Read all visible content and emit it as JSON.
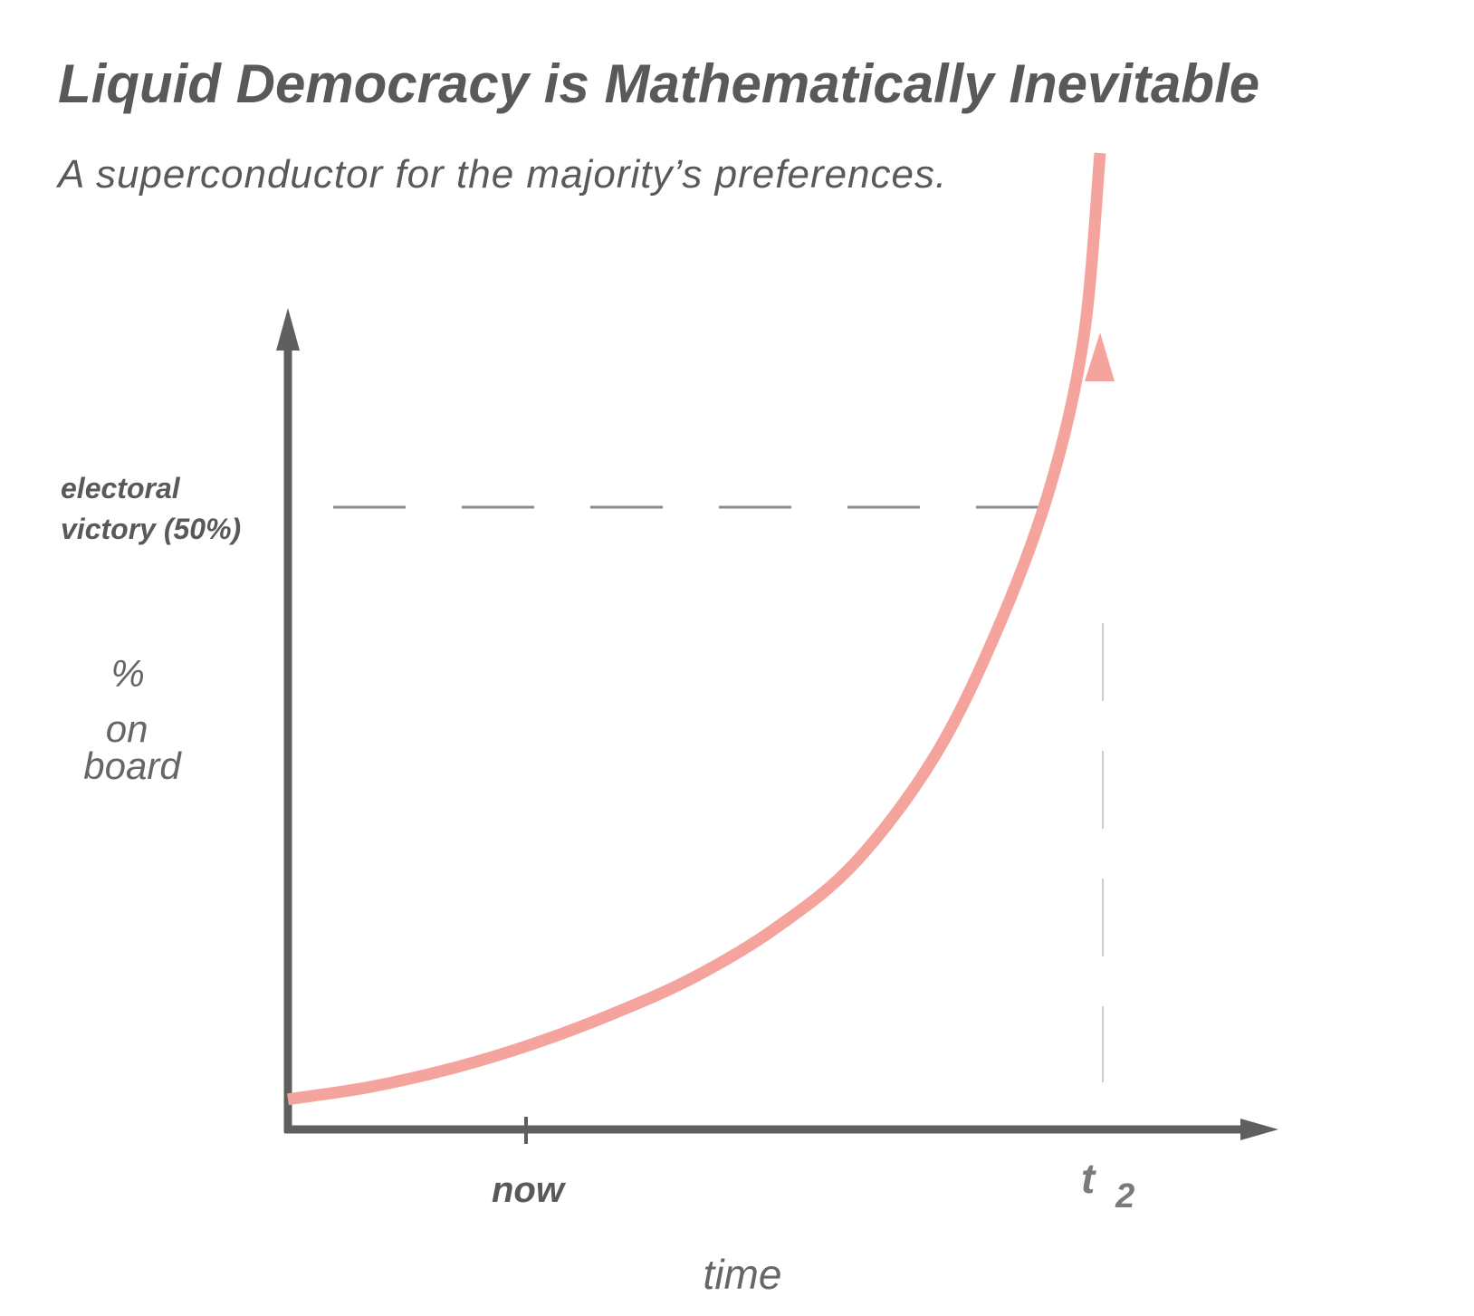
{
  "title": "Liquid Democracy is Mathematically Inevitable",
  "subtitle": "A superconductor for the majority’s preferences.",
  "colors": {
    "axis": "#5f5f5f",
    "curve": "#f4a49c",
    "threshold": "#8a8a8a",
    "marker": "#cccccc",
    "text": "#595959"
  },
  "chart_data": {
    "type": "line",
    "xlabel": "time",
    "ylabel_lines": [
      "%",
      "on",
      "board"
    ],
    "x_ticks": [
      {
        "label": "now",
        "style": "tick"
      },
      {
        "label": "t",
        "subscript": "2",
        "style": "dashed-vertical"
      }
    ],
    "threshold": {
      "label_lines": [
        "electoral",
        "victory (50%)"
      ],
      "value": 50,
      "style": "dashed-horizontal"
    },
    "series": [
      {
        "shape": "hyperbolic growth with asymptote near t2",
        "x": [
          0,
          0.1,
          0.2,
          0.3,
          0.4,
          0.5,
          0.6,
          0.7,
          0.8,
          0.88,
          0.94,
          0.98,
          1.0
        ],
        "y": [
          1.5,
          2.5,
          4,
          6,
          8.5,
          11.5,
          15.5,
          21,
          30,
          41,
          52,
          64,
          79
        ]
      }
    ]
  }
}
